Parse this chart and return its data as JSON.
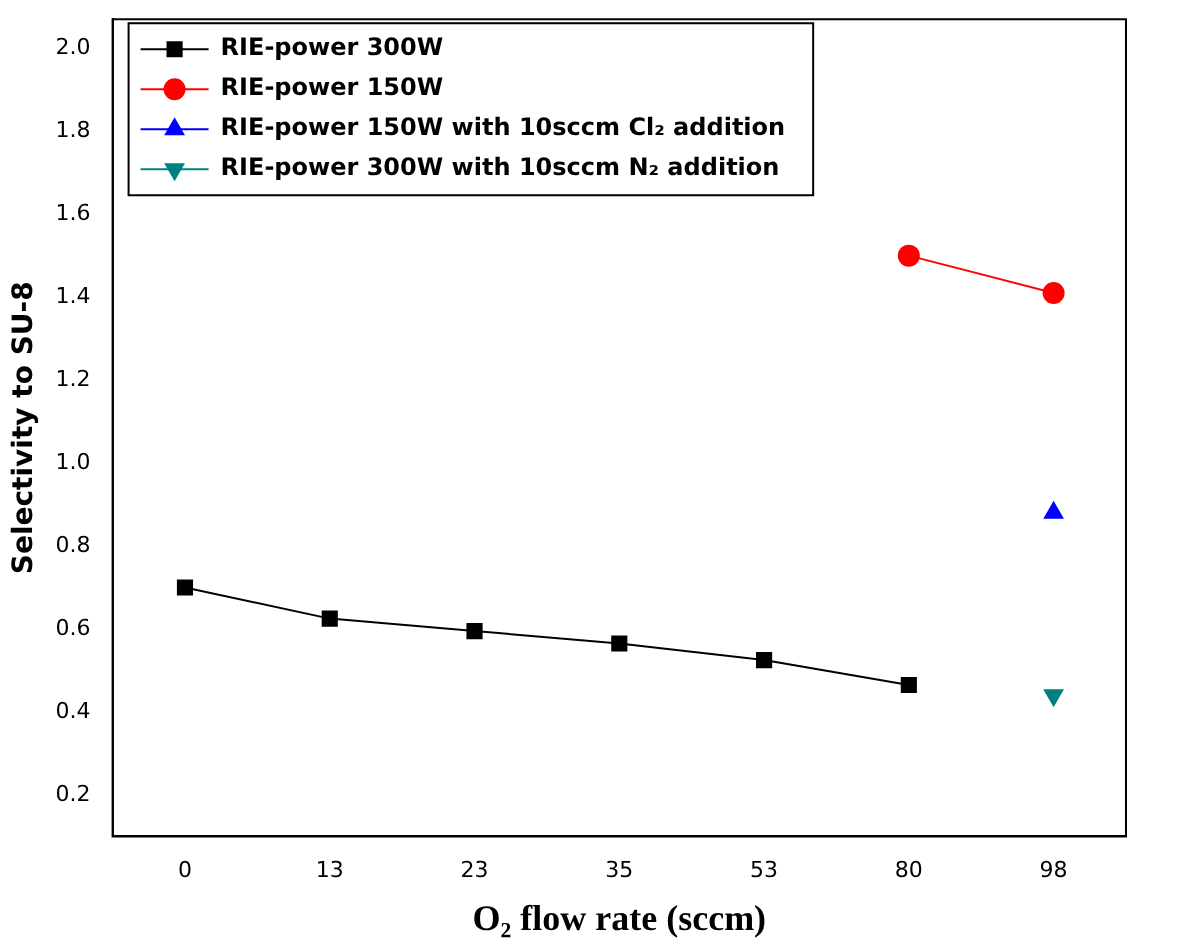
{
  "chart_data": {
    "type": "line",
    "xlabel": "O₂ flow rate (sccm)",
    "ylabel": "Selectivity to SU-8",
    "categories": [
      "0",
      "13",
      "23",
      "35",
      "53",
      "80",
      "98"
    ],
    "series": [
      {
        "name": "RIE-power 300W",
        "color": "#000000",
        "marker": "square",
        "values": [
          0.7,
          0.625,
          0.595,
          0.565,
          0.525,
          0.465,
          null
        ]
      },
      {
        "name": "RIE-power 150W",
        "color": "#ff0000",
        "marker": "circle",
        "values": [
          null,
          null,
          null,
          null,
          null,
          1.5,
          1.41
        ]
      },
      {
        "name": "RIE-power 150W with 10sccm Cl₂ addition",
        "color": "#0000ff",
        "marker": "triangle",
        "values": [
          null,
          null,
          null,
          null,
          null,
          null,
          0.88
        ]
      },
      {
        "name": "RIE-power 300W with 10sccm N₂ addition",
        "color": "#008080",
        "marker": "triangle-down",
        "values": [
          null,
          null,
          null,
          null,
          null,
          null,
          0.44
        ]
      }
    ],
    "ylim": [
      0.1,
      2.07
    ],
    "yticks": [
      0.2,
      0.4,
      0.6,
      0.8,
      {
        "value": 1,
        "label": "1.0"
      },
      1.2,
      1.4,
      1.6,
      1.8,
      {
        "value": 2,
        "label": "2.0"
      }
    ],
    "grid": false,
    "legend": "top"
  }
}
